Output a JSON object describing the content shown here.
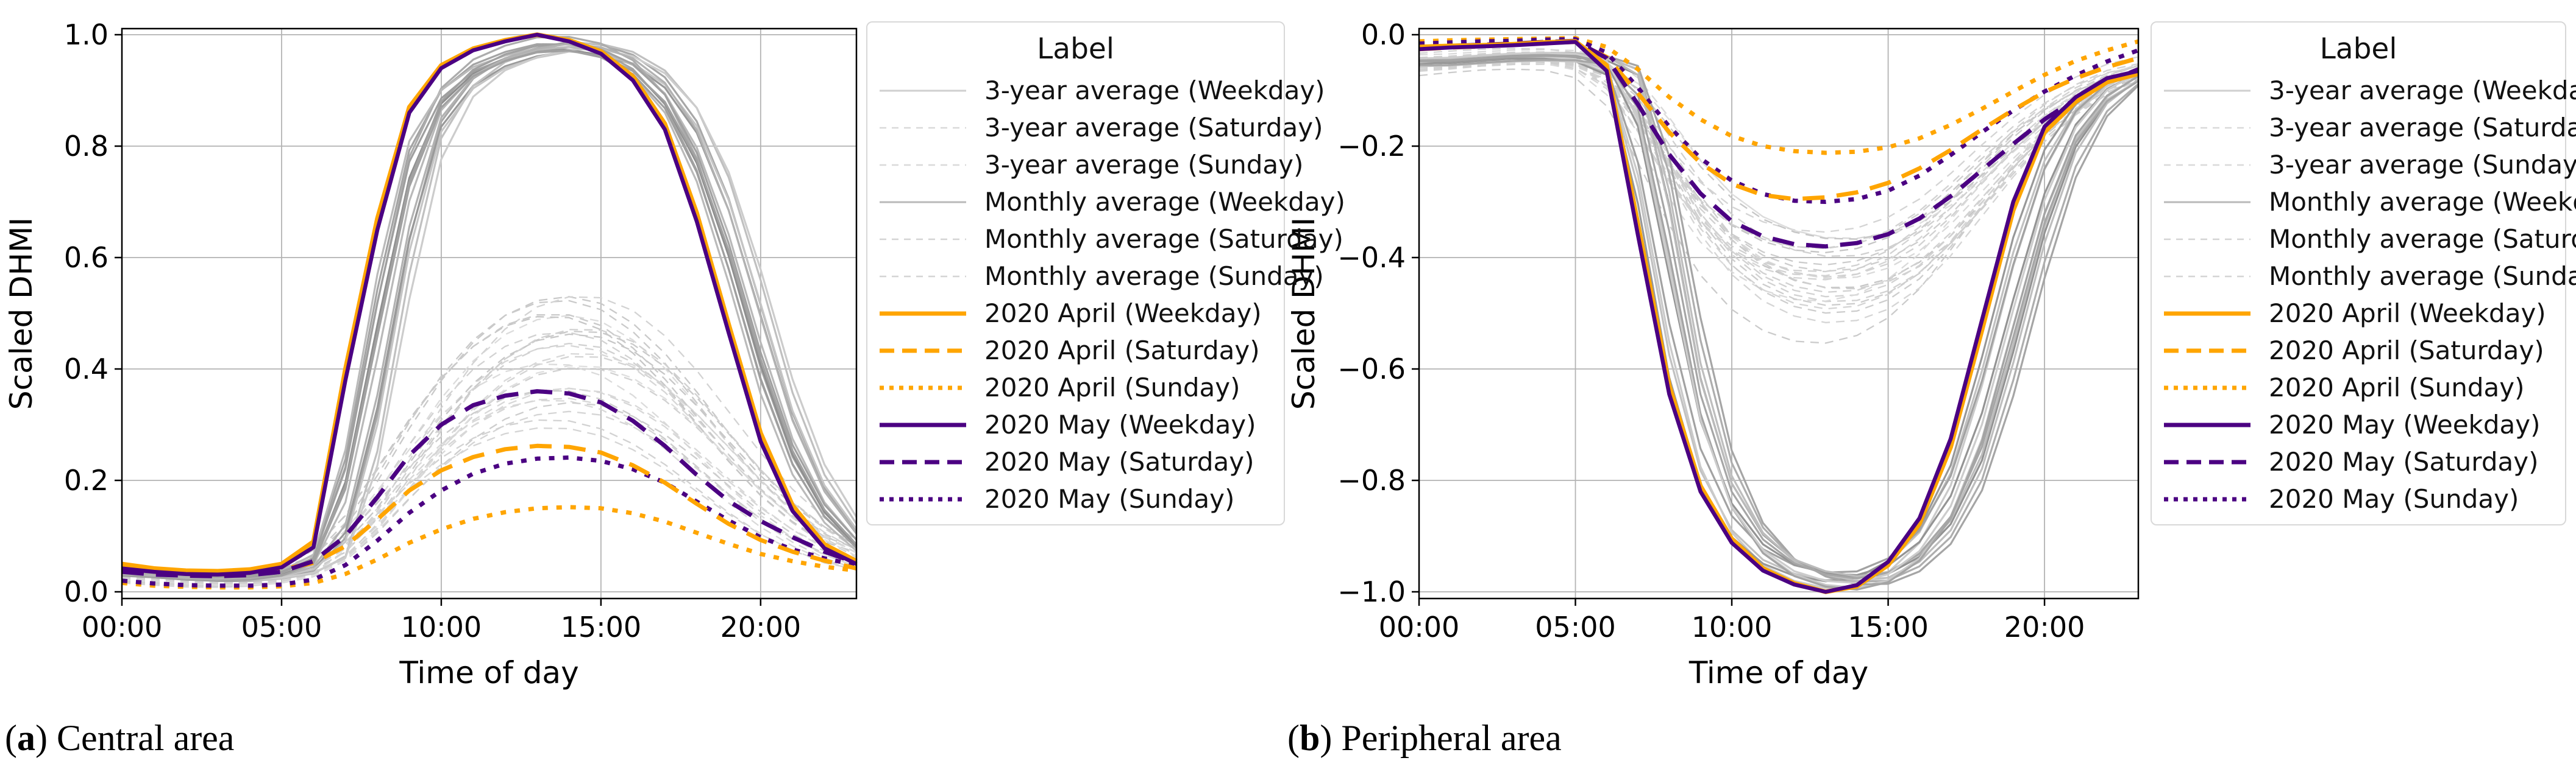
{
  "figure": {
    "background": "#ffffff"
  },
  "captions": {
    "a": {
      "open": "(",
      "letter": "a",
      "rest": ") Central area"
    },
    "b": {
      "open": "(",
      "letter": "b",
      "rest": ") Peripheral area"
    }
  },
  "colors": {
    "april": "#FFA500",
    "may": "#4B0082",
    "grid": "#b3b3b3",
    "axis": "#000000",
    "legend_border": "#d8d8d8"
  },
  "legend": {
    "title": "Label",
    "entries": [
      {
        "label": "3-year average (Weekday)",
        "color": "#cfcfcf",
        "style": "solid",
        "width": 3
      },
      {
        "label": "3-year average (Saturday)",
        "color": "#d9d9d9",
        "style": "dashed",
        "width": 2.5
      },
      {
        "label": "3-year average (Sunday)",
        "color": "#d9d9d9",
        "style": "dashed",
        "width": 2.5
      },
      {
        "label": "Monthly average (Weekday)",
        "color": "#b9b9b9",
        "style": "solid",
        "width": 3
      },
      {
        "label": "Monthly average (Saturday)",
        "color": "#d4d4d4",
        "style": "dashed",
        "width": 2.5
      },
      {
        "label": "Monthly average (Sunday)",
        "color": "#d4d4d4",
        "style": "dashed",
        "width": 2.5
      },
      {
        "label": "2020 April (Weekday)",
        "color": "#FFA500",
        "style": "solid",
        "width": 7
      },
      {
        "label": "2020 April (Saturday)",
        "color": "#FFA500",
        "style": "dashed",
        "width": 7
      },
      {
        "label": "2020 April (Sunday)",
        "color": "#FFA500",
        "style": "dotted",
        "width": 7
      },
      {
        "label": "2020 May (Weekday)",
        "color": "#4B0082",
        "style": "solid",
        "width": 7
      },
      {
        "label": "2020 May (Saturday)",
        "color": "#4B0082",
        "style": "dashed",
        "width": 7
      },
      {
        "label": "2020 May (Sunday)",
        "color": "#4B0082",
        "style": "dotted",
        "width": 7
      }
    ]
  },
  "chart_data": [
    {
      "id": "central",
      "type": "line",
      "title": "Central area",
      "xlabel": "Time of day",
      "ylabel": "Scaled DHMI",
      "x_tick_labels": [
        "00:00",
        "05:00",
        "10:00",
        "15:00",
        "20:00"
      ],
      "x_tick_hours": [
        0,
        5,
        10,
        15,
        20
      ],
      "y_tick_labels": [
        "0.0",
        "0.2",
        "0.4",
        "0.6",
        "0.8",
        "1.0"
      ],
      "y_tick_values": [
        0,
        0.2,
        0.4,
        0.6,
        0.8,
        1.0
      ],
      "xlim_hours": [
        0,
        23
      ],
      "ylim": [
        0,
        1
      ],
      "grid": true,
      "legend_position": "right",
      "hours": [
        0,
        1,
        2,
        3,
        4,
        5,
        6,
        7,
        8,
        9,
        10,
        11,
        12,
        13,
        14,
        15,
        16,
        17,
        18,
        19,
        20,
        21,
        22,
        23
      ],
      "series": [
        {
          "name": "2020 April (Weekday)",
          "color_key": "april",
          "style": "solid",
          "width": 7.5,
          "values": [
            0.05,
            0.042,
            0.038,
            0.037,
            0.04,
            0.05,
            0.09,
            0.4,
            0.67,
            0.87,
            0.945,
            0.975,
            0.99,
            1.0,
            0.99,
            0.97,
            0.925,
            0.84,
            0.68,
            0.48,
            0.285,
            0.155,
            0.085,
            0.055
          ]
        },
        {
          "name": "2020 May (Weekday)",
          "color_key": "may",
          "style": "solid",
          "width": 6.5,
          "values": [
            0.042,
            0.036,
            0.032,
            0.031,
            0.034,
            0.044,
            0.08,
            0.38,
            0.65,
            0.86,
            0.94,
            0.972,
            0.988,
            1.0,
            0.988,
            0.966,
            0.918,
            0.83,
            0.665,
            0.465,
            0.27,
            0.145,
            0.078,
            0.05
          ]
        },
        {
          "name": "2020 April (Saturday)",
          "color_key": "april",
          "style": "dashed",
          "width": 7,
          "values": [
            0.042,
            0.035,
            0.031,
            0.03,
            0.032,
            0.04,
            0.052,
            0.082,
            0.13,
            0.182,
            0.218,
            0.242,
            0.256,
            0.262,
            0.26,
            0.25,
            0.227,
            0.196,
            0.158,
            0.122,
            0.093,
            0.072,
            0.056,
            0.042
          ]
        },
        {
          "name": "2020 May (Saturday)",
          "color_key": "may",
          "style": "dashed",
          "width": 7,
          "values": [
            0.036,
            0.031,
            0.029,
            0.028,
            0.03,
            0.036,
            0.055,
            0.1,
            0.17,
            0.245,
            0.3,
            0.335,
            0.352,
            0.36,
            0.356,
            0.34,
            0.307,
            0.262,
            0.21,
            0.163,
            0.127,
            0.098,
            0.072,
            0.052
          ]
        },
        {
          "name": "2020 April (Sunday)",
          "color_key": "april",
          "style": "dotted",
          "width": 7,
          "values": [
            0.016,
            0.011,
            0.009,
            0.008,
            0.008,
            0.01,
            0.016,
            0.032,
            0.058,
            0.088,
            0.112,
            0.131,
            0.143,
            0.15,
            0.152,
            0.15,
            0.141,
            0.126,
            0.106,
            0.086,
            0.068,
            0.055,
            0.045,
            0.038
          ]
        },
        {
          "name": "2020 May (Sunday)",
          "color_key": "may",
          "style": "dotted",
          "width": 7,
          "values": [
            0.02,
            0.015,
            0.012,
            0.011,
            0.011,
            0.013,
            0.022,
            0.048,
            0.092,
            0.142,
            0.182,
            0.212,
            0.23,
            0.239,
            0.241,
            0.235,
            0.22,
            0.196,
            0.162,
            0.128,
            0.098,
            0.076,
            0.06,
            0.048
          ]
        }
      ],
      "bundles": [
        {
          "name": "3-year & Monthly averages (Saturday/Sunday)",
          "style": "dashed",
          "count": 26,
          "amp": [
            0.66,
            1.24
          ],
          "shift": [
            -0.4,
            0.8
          ],
          "offset": 0.02,
          "lum": [
            197,
            223
          ],
          "width": 2.3,
          "base": [
            0.03,
            0.025,
            0.021,
            0.02,
            0.022,
            0.03,
            0.048,
            0.095,
            0.165,
            0.245,
            0.315,
            0.37,
            0.408,
            0.428,
            0.432,
            0.42,
            0.388,
            0.342,
            0.283,
            0.222,
            0.165,
            0.12,
            0.085,
            0.06
          ]
        },
        {
          "name": "3-year & Monthly averages (Weekday)",
          "style": "solid",
          "count": 14,
          "amp": [
            0.97,
            1.002
          ],
          "shift": [
            0,
            1.2
          ],
          "offset": 0.012,
          "lum": [
            140,
            205
          ],
          "width": 3.2,
          "base": [
            0.032,
            0.027,
            0.023,
            0.022,
            0.026,
            0.036,
            0.068,
            0.27,
            0.6,
            0.84,
            0.925,
            0.965,
            0.985,
            0.998,
            0.995,
            0.98,
            0.945,
            0.875,
            0.745,
            0.555,
            0.35,
            0.205,
            0.12,
            0.07
          ]
        }
      ],
      "value_clamp": [
        0.004,
        1.0
      ]
    },
    {
      "id": "peripheral",
      "type": "line",
      "title": "Peripheral area",
      "xlabel": "Time of day",
      "ylabel": "Scaled DHMI",
      "x_tick_labels": [
        "00:00",
        "05:00",
        "10:00",
        "15:00",
        "20:00"
      ],
      "x_tick_hours": [
        0,
        5,
        10,
        15,
        20
      ],
      "y_tick_labels": [
        "0.0",
        "−0.2",
        "−0.4",
        "−0.6",
        "−0.8",
        "−1.0"
      ],
      "y_tick_values": [
        0,
        -0.2,
        -0.4,
        -0.6,
        -0.8,
        -1.0
      ],
      "xlim_hours": [
        0,
        23
      ],
      "ylim": [
        -1,
        0
      ],
      "grid": true,
      "legend_position": "right",
      "hours": [
        0,
        1,
        2,
        3,
        4,
        5,
        6,
        7,
        8,
        9,
        10,
        11,
        12,
        13,
        14,
        15,
        16,
        17,
        18,
        19,
        20,
        21,
        22,
        23
      ],
      "series": [
        {
          "name": "2020 April (Weekday)",
          "color_key": "april",
          "style": "solid",
          "width": 7.5,
          "values": [
            -0.022,
            -0.02,
            -0.019,
            -0.017,
            -0.014,
            -0.012,
            -0.055,
            -0.34,
            -0.63,
            -0.81,
            -0.905,
            -0.958,
            -0.985,
            -1.0,
            -0.99,
            -0.952,
            -0.878,
            -0.74,
            -0.53,
            -0.315,
            -0.175,
            -0.12,
            -0.085,
            -0.07
          ]
        },
        {
          "name": "2020 May (Weekday)",
          "color_key": "may",
          "style": "solid",
          "width": 6.5,
          "values": [
            -0.026,
            -0.023,
            -0.021,
            -0.019,
            -0.016,
            -0.013,
            -0.065,
            -0.36,
            -0.645,
            -0.82,
            -0.912,
            -0.962,
            -0.987,
            -1.0,
            -0.988,
            -0.946,
            -0.868,
            -0.725,
            -0.512,
            -0.3,
            -0.165,
            -0.112,
            -0.078,
            -0.065
          ]
        },
        {
          "name": "2020 April (Saturday)",
          "color_key": "april",
          "style": "dashed",
          "width": 7,
          "values": [
            -0.026,
            -0.023,
            -0.021,
            -0.018,
            -0.015,
            -0.013,
            -0.04,
            -0.105,
            -0.175,
            -0.23,
            -0.268,
            -0.288,
            -0.295,
            -0.292,
            -0.283,
            -0.266,
            -0.24,
            -0.207,
            -0.17,
            -0.135,
            -0.103,
            -0.078,
            -0.058,
            -0.042
          ]
        },
        {
          "name": "2020 May (Saturday)",
          "color_key": "may",
          "style": "dashed",
          "width": 7,
          "values": [
            -0.022,
            -0.02,
            -0.018,
            -0.016,
            -0.013,
            -0.011,
            -0.042,
            -0.125,
            -0.215,
            -0.285,
            -0.335,
            -0.362,
            -0.376,
            -0.38,
            -0.374,
            -0.358,
            -0.33,
            -0.29,
            -0.243,
            -0.196,
            -0.152,
            -0.115,
            -0.085,
            -0.062
          ]
        },
        {
          "name": "2020 April (Sunday)",
          "color_key": "april",
          "style": "dotted",
          "width": 7,
          "values": [
            -0.012,
            -0.01,
            -0.009,
            -0.008,
            -0.007,
            -0.006,
            -0.022,
            -0.062,
            -0.112,
            -0.152,
            -0.182,
            -0.2,
            -0.209,
            -0.212,
            -0.21,
            -0.202,
            -0.186,
            -0.162,
            -0.133,
            -0.102,
            -0.072,
            -0.047,
            -0.028,
            -0.012
          ]
        },
        {
          "name": "2020 May (Sunday)",
          "color_key": "may",
          "style": "dotted",
          "width": 7,
          "values": [
            -0.016,
            -0.014,
            -0.012,
            -0.011,
            -0.009,
            -0.008,
            -0.032,
            -0.095,
            -0.165,
            -0.222,
            -0.262,
            -0.286,
            -0.298,
            -0.3,
            -0.295,
            -0.28,
            -0.253,
            -0.216,
            -0.175,
            -0.136,
            -0.102,
            -0.073,
            -0.048,
            -0.028
          ]
        }
      ],
      "bundles": [
        {
          "name": "3-year & Monthly averages (Saturday/Sunday)",
          "style": "dashed",
          "count": 26,
          "amp": [
            0.72,
            1.12
          ],
          "shift": [
            -0.4,
            0.8
          ],
          "offset": 0.03,
          "lum": [
            197,
            223
          ],
          "width": 2.3,
          "base": [
            -0.062,
            -0.057,
            -0.052,
            -0.05,
            -0.05,
            -0.055,
            -0.082,
            -0.165,
            -0.272,
            -0.362,
            -0.425,
            -0.465,
            -0.487,
            -0.495,
            -0.488,
            -0.465,
            -0.425,
            -0.365,
            -0.295,
            -0.228,
            -0.17,
            -0.125,
            -0.092,
            -0.07
          ]
        },
        {
          "name": "3-year & Monthly averages (Weekday)",
          "style": "solid",
          "count": 14,
          "amp": [
            0.97,
            1.002
          ],
          "shift": [
            0,
            1.5
          ],
          "offset": 0.015,
          "lum": [
            140,
            205
          ],
          "width": 3.2,
          "base": [
            -0.05,
            -0.046,
            -0.042,
            -0.04,
            -0.04,
            -0.045,
            -0.07,
            -0.31,
            -0.63,
            -0.825,
            -0.92,
            -0.968,
            -0.99,
            -1.0,
            -0.993,
            -0.962,
            -0.902,
            -0.785,
            -0.585,
            -0.365,
            -0.205,
            -0.122,
            -0.082,
            -0.062
          ]
        }
      ],
      "value_clamp": [
        -1.0,
        -0.004
      ]
    }
  ]
}
